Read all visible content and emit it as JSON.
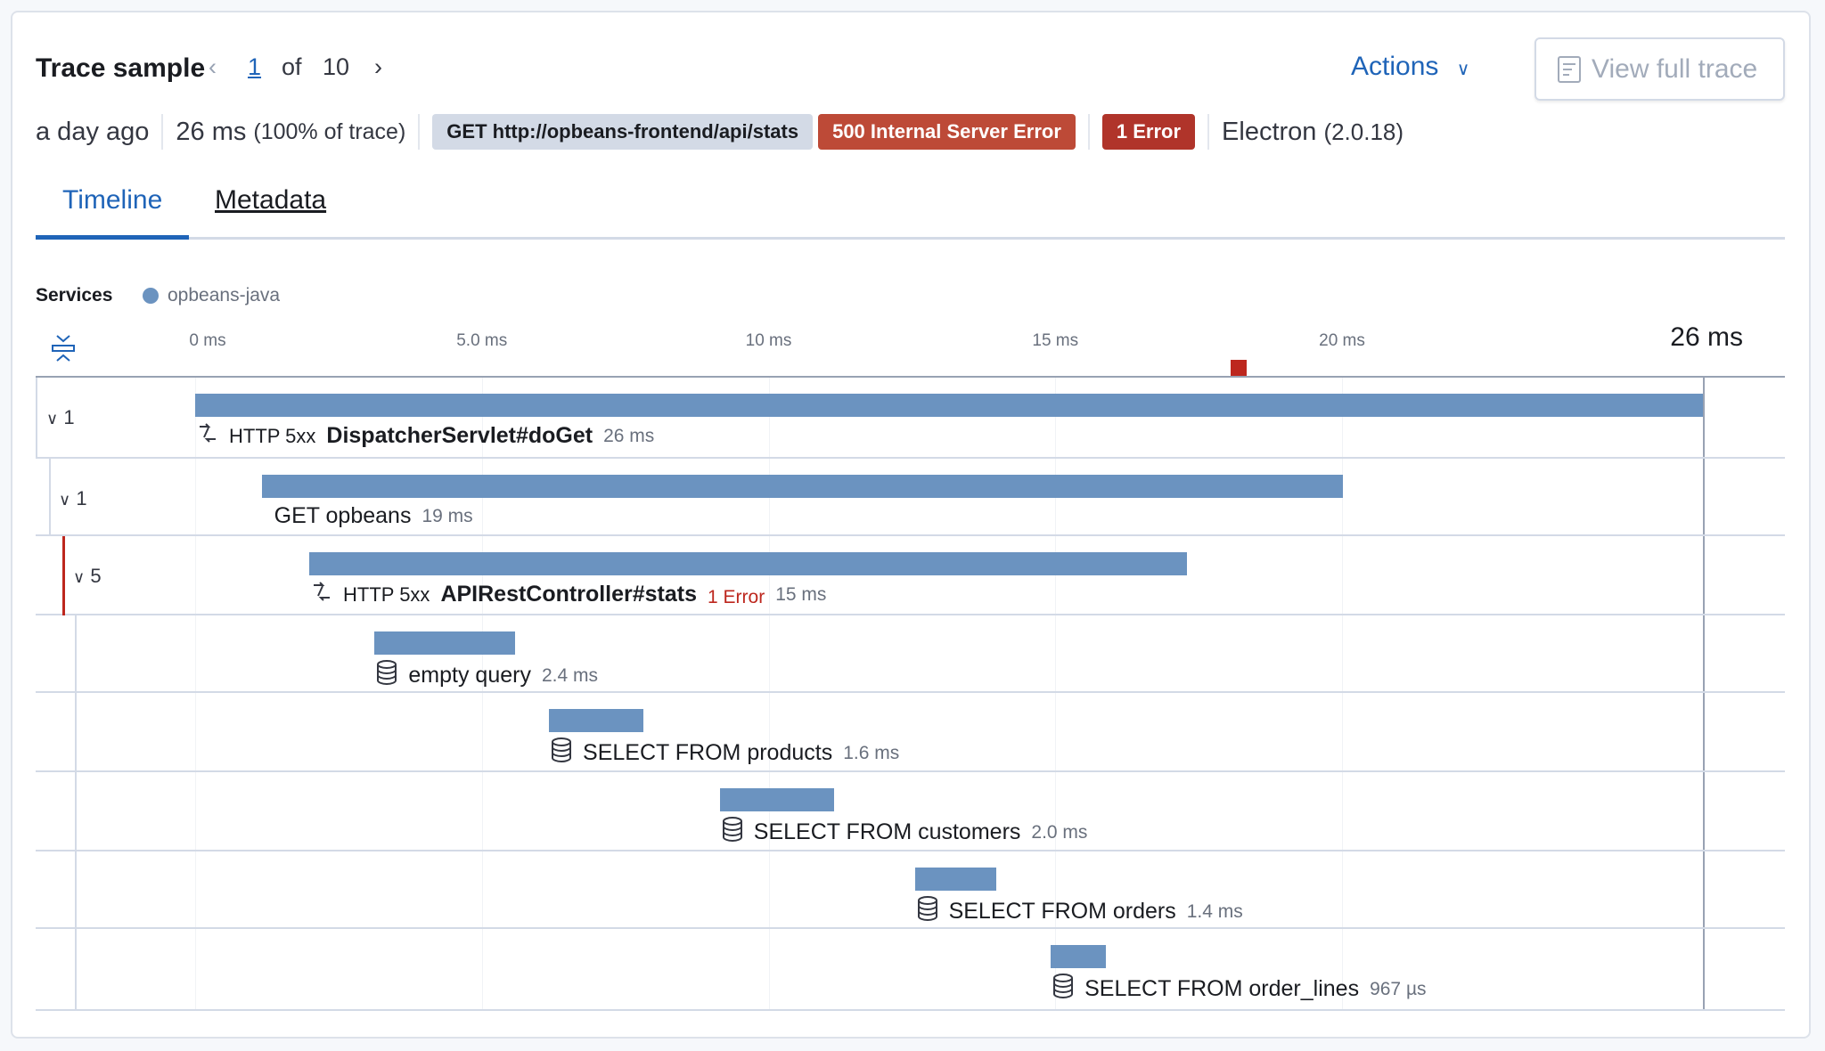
{
  "header": {
    "title": "Trace sample",
    "current_page": "1",
    "of_label": "of",
    "total_pages": "10",
    "actions_label": "Actions",
    "view_full_trace_label": "View full trace"
  },
  "meta": {
    "age": "a day ago",
    "duration": "26 ms",
    "percent_of_trace": "(100% of trace)",
    "url_badge": "GET http://opbeans-frontend/api/stats",
    "status_badge": "500 Internal Server Error",
    "error_badge": "1 Error",
    "agent_name": "Electron",
    "agent_version": "(2.0.18)"
  },
  "tabs": [
    {
      "label": "Timeline",
      "selected": true
    },
    {
      "label": "Metadata",
      "selected": false
    }
  ],
  "services": {
    "label": "Services",
    "items": [
      {
        "name": "opbeans-java",
        "color": "#6b93c0"
      }
    ]
  },
  "axis": {
    "ticks": [
      {
        "label": "0 ms",
        "value": 0
      },
      {
        "label": "5.0 ms",
        "value": 5
      },
      {
        "label": "10 ms",
        "value": 10
      },
      {
        "label": "15 ms",
        "value": 15
      },
      {
        "label": "20 ms",
        "value": 20
      }
    ],
    "total_label": "26 ms",
    "total_ms": 26.3,
    "error_marker_ms": 18.2
  },
  "colors": {
    "bar": "#6b93c0",
    "error": "#bd271e",
    "accent": "#1f64b8"
  },
  "rows": [
    {
      "child_count": "1",
      "icon": "http-icon",
      "prefix": "HTTP 5xx",
      "name": "DispatcherServlet#doGet",
      "bold": true,
      "duration": "26 ms",
      "start_ms": 0,
      "duration_ms": 26.3,
      "depth": 0
    },
    {
      "child_count": "1",
      "icon": "",
      "prefix": "",
      "name": "GET opbeans",
      "bold": false,
      "duration": "19 ms",
      "start_ms": 1.16,
      "duration_ms": 18.85,
      "depth": 1
    },
    {
      "child_count": "5",
      "icon": "http-icon",
      "prefix": "HTTP 5xx",
      "name": "APIRestController#stats",
      "bold": true,
      "error": "1 Error",
      "duration": "15 ms",
      "start_ms": 1.99,
      "duration_ms": 15.3,
      "depth": 2
    },
    {
      "icon": "database-icon",
      "name": "empty query",
      "duration": "2.4 ms",
      "start_ms": 3.13,
      "duration_ms": 2.45,
      "depth": 3
    },
    {
      "icon": "database-icon",
      "name": "SELECT FROM products",
      "duration": "1.6 ms",
      "start_ms": 6.17,
      "duration_ms": 1.64,
      "depth": 3
    },
    {
      "icon": "database-icon",
      "name": "SELECT FROM customers",
      "duration": "2.0 ms",
      "start_ms": 9.15,
      "duration_ms": 1.99,
      "depth": 3
    },
    {
      "icon": "database-icon",
      "name": "SELECT FROM orders",
      "duration": "1.4 ms",
      "start_ms": 12.55,
      "duration_ms": 1.42,
      "depth": 3
    },
    {
      "icon": "database-icon",
      "name": "SELECT FROM order_lines",
      "duration": "967 µs",
      "start_ms": 14.92,
      "duration_ms": 0.967,
      "depth": 3
    }
  ]
}
